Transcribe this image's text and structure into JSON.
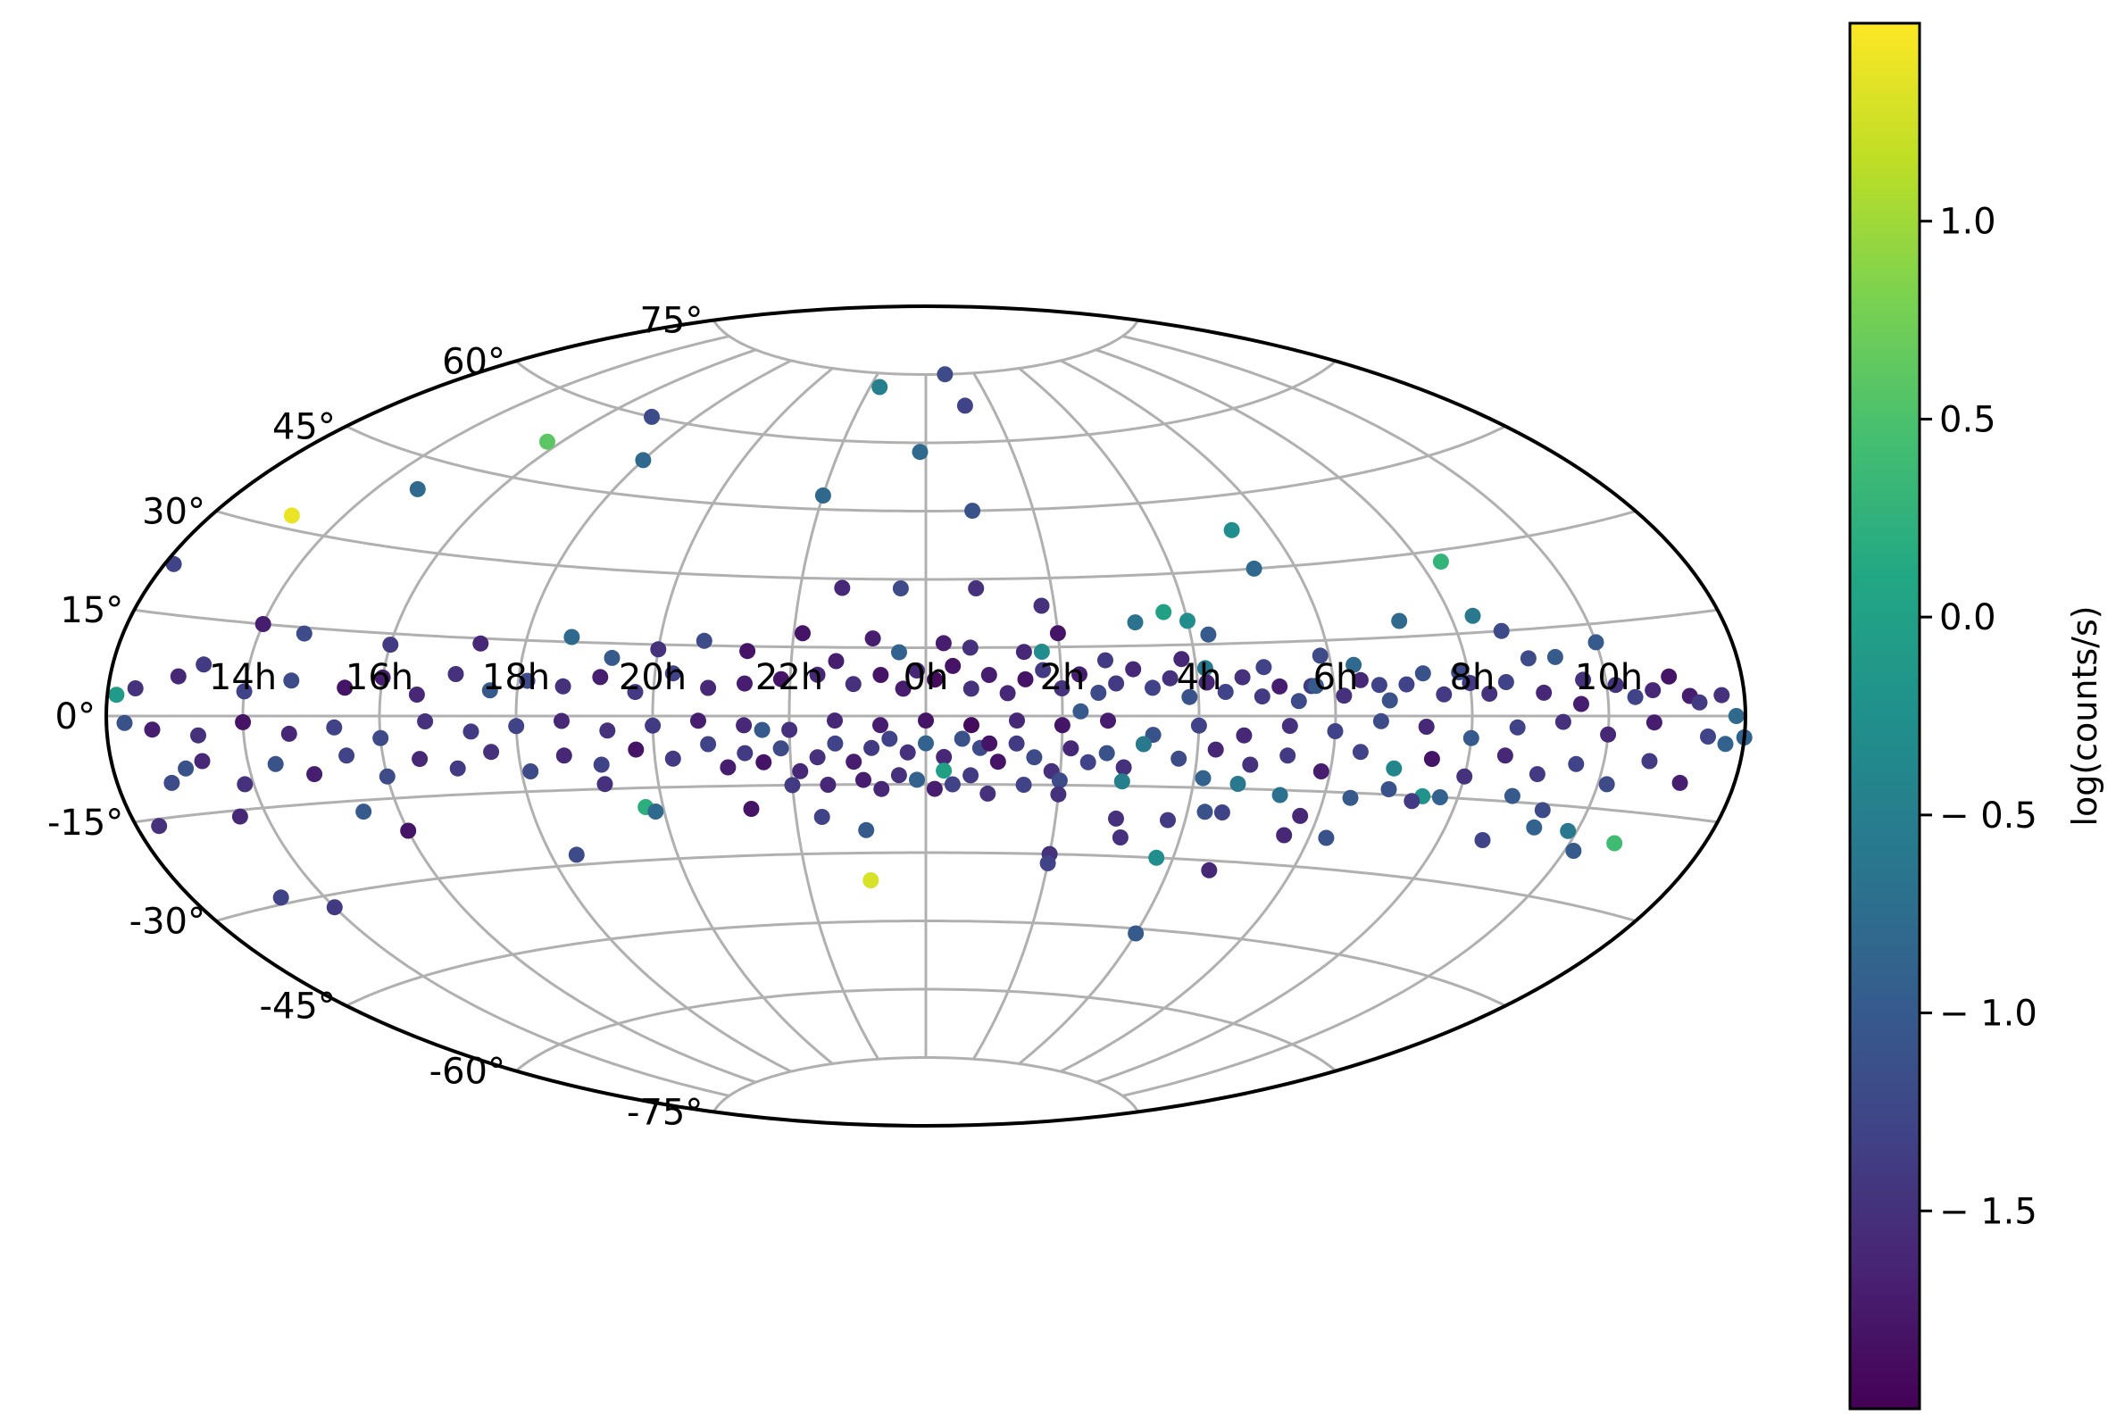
{
  "chart_data": {
    "type": "scatter",
    "projection": "aitoff",
    "title": "",
    "xlabel": "",
    "ylabel": "",
    "grid": true,
    "x_ticks": [
      "14h",
      "16h",
      "18h",
      "20h",
      "22h",
      "0h",
      "2h",
      "4h",
      "6h",
      "8h",
      "10h"
    ],
    "x_tick_lon_deg": [
      150,
      120,
      90,
      60,
      30,
      0,
      -30,
      -60,
      -90,
      -120,
      -150
    ],
    "y_ticks": [
      "75°",
      "60°",
      "45°",
      "30°",
      "15°",
      "0°",
      "-15°",
      "-30°",
      "-45°",
      "-60°",
      "-75°"
    ],
    "y_tick_lat_deg": [
      75,
      60,
      45,
      30,
      15,
      0,
      -15,
      -30,
      -45,
      -60,
      -75
    ],
    "x_units": "degrees from center, positive to the left (RA 0h at center)",
    "colorbar": {
      "label": "log(counts/s)",
      "range": [
        -2.0,
        1.5
      ],
      "ticks": [
        1.0,
        0.5,
        0.0,
        -0.5,
        -1.0,
        -1.5
      ],
      "tick_labels": [
        "1.0",
        "0.5",
        "0.0",
        "− 0.5",
        "− 1.0",
        "− 1.5"
      ],
      "colormap": "viridis"
    },
    "points_format": [
      "lon_deg",
      "lat_deg",
      "log_counts"
    ],
    "points": [
      [
        25,
        72,
        -0.5
      ],
      [
        -12,
        75,
        -1.2
      ],
      [
        -18,
        68,
        -1.3
      ],
      [
        105,
        60,
        -1.2
      ],
      [
        124,
        52,
        0.6
      ],
      [
        90,
        52,
        -0.8
      ],
      [
        2,
        58,
        -0.8
      ],
      [
        30,
        48,
        -0.8
      ],
      [
        -13,
        45,
        -1.1
      ],
      [
        140,
        40,
        -0.8
      ],
      [
        162,
        32,
        1.4
      ],
      [
        -80,
        38,
        -0.3
      ],
      [
        -80,
        30,
        -0.8
      ],
      [
        -125,
        28,
        0.3
      ],
      [
        178,
        22,
        -1.3
      ],
      [
        20,
        28,
        -1.6
      ],
      [
        6,
        28,
        -1.2
      ],
      [
        -12,
        28,
        -1.5
      ],
      [
        -27,
        24,
        -1.5
      ],
      [
        -55,
        22,
        0.0
      ],
      [
        -60,
        20,
        -0.3
      ],
      [
        -64,
        17,
        -1.0
      ],
      [
        -48,
        20,
        -0.7
      ],
      [
        -108,
        18,
        -0.8
      ],
      [
        -125,
        18,
        -0.6
      ],
      [
        -130,
        15,
        -1.2
      ],
      [
        -110,
        8,
        -1.1
      ],
      [
        -134,
        10,
        -1.2
      ],
      [
        -140,
        10,
        -1.0
      ],
      [
        -95,
        10,
        -0.8
      ],
      [
        -88,
        12,
        -1.2
      ],
      [
        -75,
        10,
        -1.3
      ],
      [
        -62,
        10,
        -0.6
      ],
      [
        -57,
        12,
        -1.6
      ],
      [
        -85,
        6,
        -1.4
      ],
      [
        -100,
        6,
        -1.3
      ],
      [
        -120,
        6,
        -1.4
      ],
      [
        -145,
        6,
        -1.5
      ],
      [
        -160,
        4,
        -1.6
      ],
      [
        -168,
        3,
        -1.7
      ],
      [
        -175,
        3,
        -1.5
      ],
      [
        -178,
        0,
        -0.8
      ],
      [
        -180,
        -3,
        -0.9
      ],
      [
        -172,
        -3,
        -1.3
      ],
      [
        -160,
        -1,
        -1.7
      ],
      [
        -150,
        -3,
        -1.6
      ],
      [
        -140,
        -1,
        -1.5
      ],
      [
        -130,
        -2,
        -1.3
      ],
      [
        -120,
        -4,
        -1.0
      ],
      [
        -110,
        -2,
        -1.6
      ],
      [
        -100,
        -1,
        -1.2
      ],
      [
        -90,
        -3,
        -1.3
      ],
      [
        -80,
        -2,
        -1.5
      ],
      [
        -70,
        -4,
        -1.6
      ],
      [
        -60,
        -2,
        -1.3
      ],
      [
        -50,
        -4,
        -1.1
      ],
      [
        -40,
        -1,
        -1.7
      ],
      [
        -30,
        -2,
        -1.8
      ],
      [
        -20,
        -1,
        -1.6
      ],
      [
        -10,
        -2,
        -1.9
      ],
      [
        0,
        -1,
        -1.8
      ],
      [
        10,
        -2,
        -1.7
      ],
      [
        20,
        -1,
        -1.6
      ],
      [
        30,
        -3,
        -1.5
      ],
      [
        40,
        -2,
        -1.6
      ],
      [
        50,
        -1,
        -1.7
      ],
      [
        60,
        -2,
        -1.4
      ],
      [
        70,
        -3,
        -1.5
      ],
      [
        80,
        -1,
        -1.6
      ],
      [
        90,
        -2,
        -1.3
      ],
      [
        100,
        -3,
        -1.4
      ],
      [
        110,
        -1,
        -1.5
      ],
      [
        120,
        -4,
        -1.2
      ],
      [
        130,
        -2,
        -1.3
      ],
      [
        140,
        -3,
        -1.6
      ],
      [
        150,
        -1,
        -1.8
      ],
      [
        160,
        -3,
        -1.5
      ],
      [
        170,
        -2,
        -1.7
      ],
      [
        176,
        -1,
        -1.1
      ],
      [
        178,
        3,
        -0.1
      ],
      [
        174,
        4,
        -1.5
      ],
      [
        165,
        6,
        -1.6
      ],
      [
        160,
        8,
        -1.4
      ],
      [
        150,
        4,
        -1.3
      ],
      [
        140,
        6,
        -1.2
      ],
      [
        128,
        5,
        -1.8
      ],
      [
        120,
        7,
        -1.7
      ],
      [
        112,
        4,
        -1.6
      ],
      [
        104,
        8,
        -1.5
      ],
      [
        96,
        5,
        -1.0
      ],
      [
        88,
        7,
        -1.2
      ],
      [
        80,
        6,
        -1.5
      ],
      [
        72,
        8,
        -1.7
      ],
      [
        64,
        5,
        -1.4
      ],
      [
        56,
        9,
        -1.3
      ],
      [
        48,
        6,
        -1.6
      ],
      [
        40,
        7,
        -1.7
      ],
      [
        32,
        8,
        -1.8
      ],
      [
        24,
        9,
        -1.6
      ],
      [
        16,
        7,
        -1.5
      ],
      [
        10,
        9,
        -1.8
      ],
      [
        5,
        6,
        -1.7
      ],
      [
        2,
        10,
        -1.6
      ],
      [
        -2,
        8,
        -1.9
      ],
      [
        -6,
        11,
        -1.8
      ],
      [
        -10,
        6,
        -1.5
      ],
      [
        -14,
        9,
        -1.7
      ],
      [
        -18,
        5,
        -1.6
      ],
      [
        -22,
        8,
        -1.8
      ],
      [
        -26,
        10,
        -1.4
      ],
      [
        -30,
        6,
        -1.5
      ],
      [
        -34,
        9,
        -1.7
      ],
      [
        -38,
        5,
        -1.2
      ],
      [
        -42,
        7,
        -1.4
      ],
      [
        -46,
        10,
        -1.6
      ],
      [
        -50,
        6,
        -1.3
      ],
      [
        -54,
        8,
        -1.5
      ],
      [
        -58,
        4,
        -1.1
      ],
      [
        -62,
        7,
        -1.6
      ],
      [
        -66,
        5,
        -1.3
      ],
      [
        -70,
        8,
        -1.5
      ],
      [
        -74,
        4,
        -1.4
      ],
      [
        -78,
        6,
        -1.7
      ],
      [
        -82,
        3,
        -1.2
      ],
      [
        -86,
        6,
        -1.0
      ],
      [
        -92,
        4,
        -1.5
      ],
      [
        -96,
        7,
        -1.6
      ],
      [
        -102,
        3,
        -1.1
      ],
      [
        -106,
        6,
        -1.3
      ],
      [
        -114,
        4,
        -1.4
      ],
      [
        -118,
        8,
        -1.2
      ],
      [
        -124,
        4,
        -1.5
      ],
      [
        -128,
        6,
        -1.3
      ],
      [
        -136,
        4,
        -1.6
      ],
      [
        -144,
        2,
        -1.7
      ],
      [
        -152,
        5,
        -1.5
      ],
      [
        -156,
        3,
        -1.3
      ],
      [
        -164,
        6,
        -1.8
      ],
      [
        -170,
        2,
        -1.4
      ],
      [
        -26,
        14,
        -0.3
      ],
      [
        -30,
        18,
        -1.8
      ],
      [
        12,
        17,
        -1.7
      ],
      [
        40,
        14,
        -1.8
      ],
      [
        -10,
        15,
        -1.5
      ],
      [
        -22,
        14,
        -1.6
      ],
      [
        6,
        14,
        -0.9
      ],
      [
        20,
        12,
        -1.7
      ],
      [
        28,
        18,
        -1.8
      ],
      [
        -4,
        16,
        -1.7
      ],
      [
        50,
        16,
        -1.2
      ],
      [
        60,
        14,
        -1.5
      ],
      [
        70,
        12,
        -1.0
      ],
      [
        80,
        16,
        -0.8
      ],
      [
        100,
        14,
        -1.6
      ],
      [
        120,
        13,
        -1.4
      ],
      [
        140,
        14,
        -1.2
      ],
      [
        150,
        15,
        -1.7
      ],
      [
        -40,
        12,
        -1.4
      ],
      [
        -150,
        12,
        -1.0
      ],
      [
        8,
        -5,
        -1.3
      ],
      [
        4,
        -8,
        -1.5
      ],
      [
        0,
        -6,
        -0.9
      ],
      [
        -4,
        -9,
        -1.6
      ],
      [
        -8,
        -5,
        -1.1
      ],
      [
        12,
        -7,
        -1.4
      ],
      [
        16,
        -10,
        -1.7
      ],
      [
        -12,
        -7,
        -1.2
      ],
      [
        -16,
        -10,
        -1.8
      ],
      [
        20,
        -6,
        -1.3
      ],
      [
        24,
        -9,
        -1.5
      ],
      [
        -20,
        -6,
        -1.4
      ],
      [
        -24,
        -9,
        -1.2
      ],
      [
        28,
        -12,
        -1.6
      ],
      [
        -28,
        -12,
        -1.5
      ],
      [
        32,
        -7,
        -1.2
      ],
      [
        -32,
        -7,
        -1.6
      ],
      [
        36,
        -10,
        -1.8
      ],
      [
        -36,
        -10,
        -1.3
      ],
      [
        40,
        -8,
        -1.4
      ],
      [
        -40,
        -8,
        -1.1
      ],
      [
        44,
        -11,
        -1.7
      ],
      [
        -44,
        -11,
        -1.5
      ],
      [
        48,
        -6,
        -1.3
      ],
      [
        -48,
        -6,
        -0.6
      ],
      [
        56,
        -9,
        -1.4
      ],
      [
        -56,
        -9,
        -1.2
      ],
      [
        64,
        -7,
        -1.8
      ],
      [
        -64,
        -7,
        -1.6
      ],
      [
        72,
        -10,
        -1.3
      ],
      [
        -72,
        -10,
        -1.5
      ],
      [
        80,
        -8,
        -1.6
      ],
      [
        -80,
        -8,
        -1.4
      ],
      [
        88,
        -11,
        -1.2
      ],
      [
        -88,
        -11,
        -1.7
      ],
      [
        96,
        -7,
        -1.5
      ],
      [
        -96,
        -7,
        -1.3
      ],
      [
        104,
        -10,
        -1.4
      ],
      [
        -104,
        -10,
        -0.4
      ],
      [
        112,
        -8,
        -1.6
      ],
      [
        -112,
        -8,
        -1.8
      ],
      [
        120,
        -11,
        -1.2
      ],
      [
        -120,
        -11,
        -1.5
      ],
      [
        128,
        -7,
        -1.3
      ],
      [
        -128,
        -7,
        -1.6
      ],
      [
        136,
        -10,
        -1.7
      ],
      [
        -136,
        -10,
        -1.4
      ],
      [
        144,
        -8,
        -1.1
      ],
      [
        -144,
        -8,
        -1.3
      ],
      [
        152,
        -11,
        -1.5
      ],
      [
        -152,
        -11,
        -1.2
      ],
      [
        160,
        -7,
        -1.6
      ],
      [
        -160,
        -7,
        -1.4
      ],
      [
        168,
        -10,
        -1.2
      ],
      [
        -168,
        -10,
        -1.7
      ],
      [
        2,
        -14,
        -0.9
      ],
      [
        -2,
        -16,
        -1.7
      ],
      [
        6,
        -13,
        -1.5
      ],
      [
        -6,
        -15,
        -1.3
      ],
      [
        10,
        -16,
        -1.6
      ],
      [
        -10,
        -13,
        -1.4
      ],
      [
        14,
        -14,
        -1.7
      ],
      [
        -14,
        -17,
        -1.5
      ],
      [
        22,
        -15,
        -1.6
      ],
      [
        -22,
        -15,
        -1.3
      ],
      [
        30,
        -15,
        -1.4
      ],
      [
        -30,
        -14,
        -1.2
      ],
      [
        -44,
        -14,
        -0.5
      ],
      [
        -62,
        -13,
        -0.9
      ],
      [
        -70,
        -14,
        -0.6
      ],
      [
        72,
        -14,
        -1.5
      ],
      [
        -80,
        -16,
        -0.7
      ],
      [
        -116,
        -15,
        -0.9
      ],
      [
        -132,
        -14,
        -1.0
      ],
      [
        64,
        -19,
        0.2
      ],
      [
        62,
        -20,
        -0.8
      ],
      [
        -64,
        -20,
        -1.1
      ],
      [
        -68,
        -20,
        -1.3
      ],
      [
        -86,
        -20,
        -1.6
      ],
      [
        -96,
        -16,
        -1.0
      ],
      [
        -104,
        -14,
        -1.1
      ],
      [
        -112,
        -15,
        -0.2
      ],
      [
        -140,
        -19,
        -0.9
      ],
      [
        -148,
        -19,
        -0.6
      ],
      [
        -160,
        -20,
        0.4
      ],
      [
        -110,
        -16,
        -1.4
      ],
      [
        -140,
        -16,
        -1.2
      ],
      [
        128,
        -17,
        -1.0
      ],
      [
        156,
        -16,
        -1.6
      ],
      [
        40,
        -20,
        -1.8
      ],
      [
        -30,
        -17,
        -1.5
      ],
      [
        24,
        -22,
        -1.3
      ],
      [
        120,
        -21,
        -1.8
      ],
      [
        -44,
        -22,
        -1.5
      ],
      [
        -56,
        -22,
        -1.4
      ],
      [
        -84,
        -24,
        -1.6
      ],
      [
        -94,
        -24,
        -1.1
      ],
      [
        -130,
        -22,
        -1.3
      ],
      [
        -152,
        -22,
        -1.0
      ],
      [
        -176,
        -4,
        -0.9
      ],
      [
        175,
        -16,
        -1.5
      ],
      [
        164,
        -8,
        -1.1
      ],
      [
        14,
        -25,
        -1.0
      ],
      [
        -30,
        -30,
        -1.5
      ],
      [
        -30,
        -32,
        -1.3
      ],
      [
        -56,
        -30,
        -0.3
      ],
      [
        -70,
        -32,
        -1.6
      ],
      [
        -46,
        -26,
        -1.5
      ],
      [
        84,
        -28,
        -1.2
      ],
      [
        160,
        -29,
        -1.3
      ],
      [
        150,
        -32,
        -1.4
      ],
      [
        14,
        -36,
        1.3
      ],
      [
        -60,
        -46,
        -1.0
      ],
      [
        -4,
        -12,
        0.0
      ],
      [
        -14,
        -6,
        -1.8
      ],
      [
        36,
        -3,
        -1.0
      ],
      [
        -34,
        1,
        -1.0
      ]
    ]
  }
}
